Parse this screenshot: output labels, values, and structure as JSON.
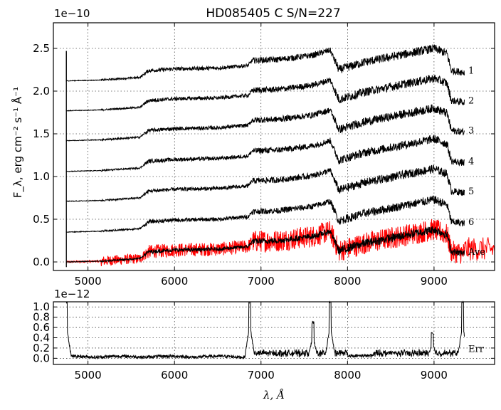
{
  "chart_data": [
    {
      "type": "line",
      "title": "HD085405  C  S/N=227",
      "ylabel": "F_λ, erg cm⁻² s⁻¹ Å⁻¹",
      "yexponent": "1e−10",
      "xlim": [
        4600,
        9700
      ],
      "ylim": [
        -0.1,
        2.8
      ],
      "xticks": [
        5000,
        6000,
        7000,
        8000,
        9000
      ],
      "xtick_labels": [
        "5000",
        "6000",
        "7000",
        "8000",
        "9000"
      ],
      "yticks": [
        0.0,
        0.5,
        1.0,
        1.5,
        2.0,
        2.5
      ],
      "ytick_labels": [
        "0.0",
        "0.5",
        "1.0",
        "1.5",
        "2.0",
        "2.5"
      ],
      "grid": true,
      "series": [
        {
          "name": "1",
          "color": "#000000",
          "offset": 2.12
        },
        {
          "name": "2",
          "color": "#000000",
          "offset": 1.77
        },
        {
          "name": "3",
          "color": "#000000",
          "offset": 1.42
        },
        {
          "name": "4",
          "color": "#000000",
          "offset": 1.06
        },
        {
          "name": "5",
          "color": "#000000",
          "offset": 0.71
        },
        {
          "name": "6",
          "color": "#000000",
          "offset": 0.35
        },
        {
          "name": "Ave",
          "color": "#000000",
          "offset": 0.0
        },
        {
          "name": "",
          "color": "#ff0000",
          "offset": 0.0
        }
      ],
      "continuum_shape": [
        [
          4750,
          0.0
        ],
        [
          5150,
          0.01
        ],
        [
          5600,
          0.04
        ],
        [
          5700,
          0.12
        ],
        [
          6000,
          0.14
        ],
        [
          6500,
          0.15
        ],
        [
          6850,
          0.18
        ],
        [
          6900,
          0.24
        ],
        [
          7200,
          0.25
        ],
        [
          7600,
          0.3
        ],
        [
          7800,
          0.36
        ],
        [
          7900,
          0.13
        ],
        [
          8200,
          0.22
        ],
        [
          8600,
          0.3
        ],
        [
          9000,
          0.38
        ],
        [
          9150,
          0.32
        ],
        [
          9200,
          0.12
        ],
        [
          9350,
          0.1
        ]
      ]
    },
    {
      "type": "line",
      "xlabel": "λ, Å",
      "yexponent": "1e−12",
      "xlim": [
        4600,
        9700
      ],
      "ylim": [
        -0.12,
        1.1
      ],
      "xticks": [
        5000,
        6000,
        7000,
        8000,
        9000
      ],
      "xtick_labels": [
        "5000",
        "6000",
        "7000",
        "8000",
        "9000"
      ],
      "yticks": [
        0.0,
        0.2,
        0.4,
        0.6,
        0.8,
        1.0
      ],
      "ytick_labels": [
        "0.0",
        "0.2",
        "0.4",
        "0.6",
        "0.8",
        "1.0"
      ],
      "grid": true,
      "series": [
        {
          "name": "Err",
          "color": "#000000"
        }
      ],
      "features": [
        [
          4750,
          1.1
        ],
        [
          6870,
          1.1
        ],
        [
          7600,
          0.7
        ],
        [
          7800,
          1.1
        ],
        [
          8980,
          0.5
        ],
        [
          9330,
          1.1
        ]
      ]
    }
  ]
}
